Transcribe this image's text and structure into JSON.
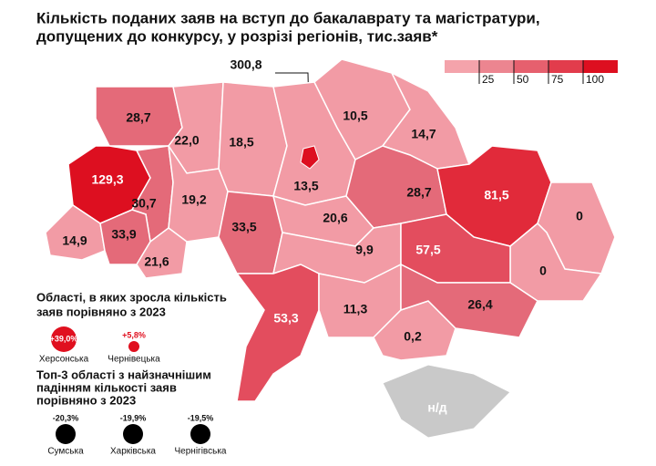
{
  "title_lines": [
    "Кількість поданих заяв на вступ до бакалаврату та магістратури,",
    "допущених до конкурсу, у розрізі регіонів, тис.заяв*"
  ],
  "legend": {
    "colors": [
      "#f4a3ab",
      "#ec8590",
      "#e6606e",
      "#e23c4c",
      "#dd0f20"
    ],
    "ticks": [
      25,
      50,
      75,
      100
    ]
  },
  "regions": [
    {
      "label": "28,7",
      "color": "#e46a79"
    },
    {
      "label": "22,0",
      "color": "#f29ba5"
    },
    {
      "label": "18,5",
      "color": "#f29ba5"
    },
    {
      "label": "13,5",
      "color": "#f29ba5"
    },
    {
      "label": "10,5",
      "color": "#f29ba5"
    },
    {
      "label": "14,7",
      "color": "#f29ba5"
    },
    {
      "label": "129,3",
      "color": "#dd0f20"
    },
    {
      "label": "30,7",
      "color": "#e46a79"
    },
    {
      "label": "19,2",
      "color": "#f29ba5"
    },
    {
      "label": "33,5",
      "color": "#e46a79"
    },
    {
      "label": "20,6",
      "color": "#f29ba5"
    },
    {
      "label": "28,7",
      "color": "#e46a79"
    },
    {
      "label": "81,5",
      "color": "#e12a3a"
    },
    {
      "label": "0",
      "color": "#f29ba5"
    },
    {
      "label": "0",
      "color": "#f29ba5"
    },
    {
      "label": "14,9",
      "color": "#f29ba5"
    },
    {
      "label": "33,9",
      "color": "#e46a79"
    },
    {
      "label": "21,6",
      "color": "#f29ba5"
    },
    {
      "label": "9,9",
      "color": "#f29ba5"
    },
    {
      "label": "57,5",
      "color": "#e34d5e"
    },
    {
      "label": "53,3",
      "color": "#e34d5e"
    },
    {
      "label": "11,3",
      "color": "#f29ba5"
    },
    {
      "label": "0,2",
      "color": "#f29ba5"
    },
    {
      "label": "26,4",
      "color": "#e46a79"
    }
  ],
  "kyiv_city": {
    "label": "300,8",
    "color": "#dd0f20"
  },
  "crimea": {
    "label": "н/д",
    "color": "#c9c9c9"
  },
  "growth": {
    "title_lines": [
      "Області, в яких зросла кількість",
      "заяв порівняно з 2023"
    ],
    "items": [
      {
        "name": "Херсонська",
        "change": "+39,0%"
      },
      {
        "name": "Чернівецька",
        "change": "+5,8%"
      }
    ]
  },
  "decline": {
    "title_lines": [
      "Топ-3 області з найзначнішим",
      "падінням кількості заяв",
      "порівняно з 2023"
    ],
    "items": [
      {
        "name": "Сумська",
        "change": "-20,3%"
      },
      {
        "name": "Харківська",
        "change": "-19,9%"
      },
      {
        "name": "Чернігівська",
        "change": "-19,5%"
      }
    ]
  }
}
